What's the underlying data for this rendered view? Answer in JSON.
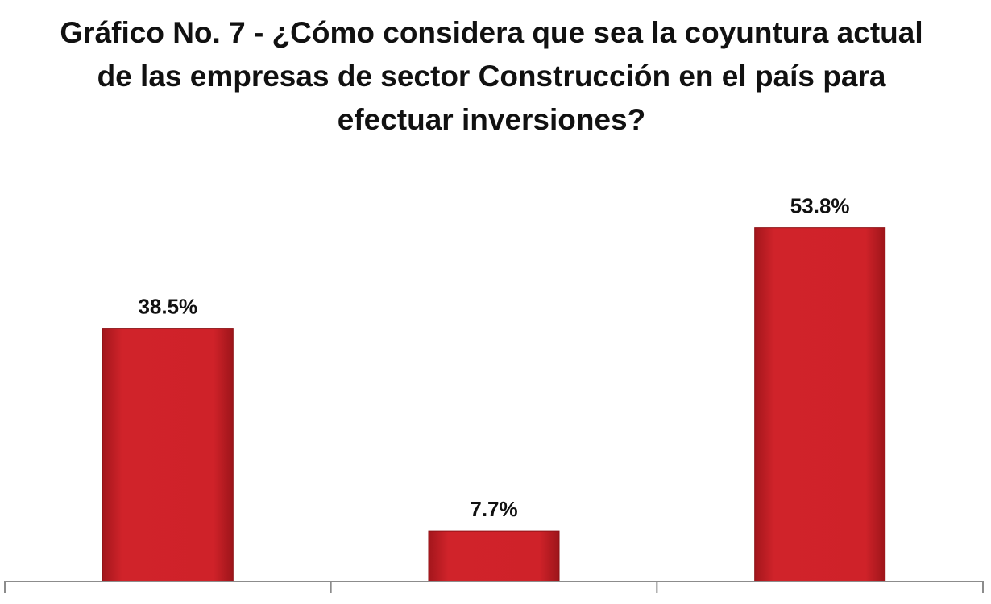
{
  "chart_data": {
    "type": "bar",
    "title": "Gráfico No. 7 - ¿Cómo considera que sea la coyuntura actual de las empresas de sector Construcción en el país para efectuar inversiones?",
    "categories": [
      "",
      "",
      ""
    ],
    "values": [
      38.5,
      7.7,
      53.8
    ],
    "data_labels": [
      "38.5%",
      "7.7%",
      "53.8%"
    ],
    "unit": "%",
    "xlabel": "",
    "ylabel": "",
    "ylim": [
      0,
      60
    ],
    "grid": false,
    "legend": "none",
    "colors": {
      "bar": "#cc2229",
      "bar_edge": "#8e1216",
      "axis": "#8c8c8c"
    }
  }
}
